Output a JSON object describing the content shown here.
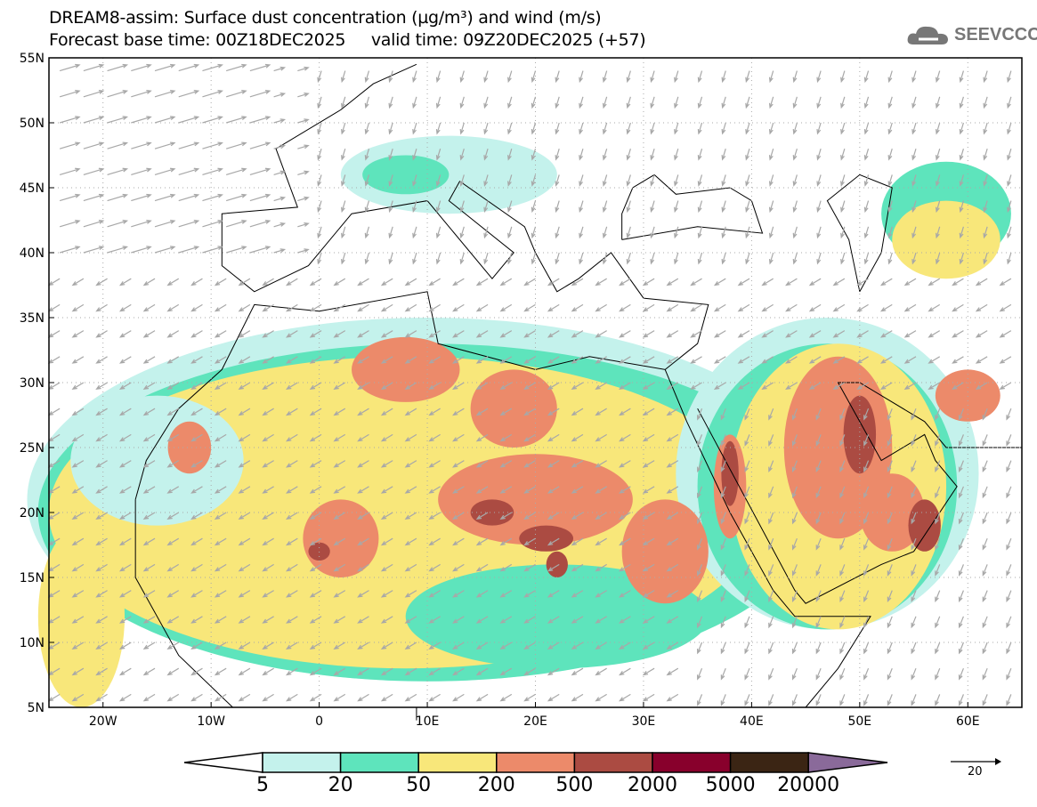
{
  "header": {
    "title_line1": "DREAM8-assim: Surface dust concentration (µg/m³) and wind (m/s)",
    "title_line2": "Forecast base time: 00Z18DEC2025     valid time: 09Z20DEC2025 (+57)",
    "logo_text": "SEEVCCC"
  },
  "map": {
    "lon_range": [
      -25,
      65
    ],
    "lat_range": [
      5,
      55
    ],
    "x_ticks": [
      {
        "lon": -20,
        "label": "20W"
      },
      {
        "lon": -10,
        "label": "10W"
      },
      {
        "lon": 0,
        "label": "0"
      },
      {
        "lon": 10,
        "label": "10E"
      },
      {
        "lon": 20,
        "label": "20E"
      },
      {
        "lon": 30,
        "label": "30E"
      },
      {
        "lon": 40,
        "label": "40E"
      },
      {
        "lon": 50,
        "label": "50E"
      },
      {
        "lon": 60,
        "label": "60E"
      }
    ],
    "y_ticks": [
      {
        "lat": 55,
        "label": "55N"
      },
      {
        "lat": 50,
        "label": "50N"
      },
      {
        "lat": 45,
        "label": "45N"
      },
      {
        "lat": 40,
        "label": "40N"
      },
      {
        "lat": 35,
        "label": "35N"
      },
      {
        "lat": 30,
        "label": "30N"
      },
      {
        "lat": 25,
        "label": "25N"
      },
      {
        "lat": 20,
        "label": "20N"
      },
      {
        "lat": 15,
        "label": "15N"
      },
      {
        "lat": 10,
        "label": "10N"
      },
      {
        "lat": 5,
        "label": "5N"
      }
    ]
  },
  "colorbar": {
    "levels": [
      "5",
      "20",
      "50",
      "200",
      "500",
      "2000",
      "5000",
      "20000"
    ],
    "colors": [
      "#c4f2ec",
      "#5ee4bc",
      "#f8e77a",
      "#ec8a6a",
      "#ab4b42",
      "#88002c",
      "#3b2514",
      "#8a6a9a"
    ]
  },
  "wind_reference": {
    "label": "20"
  }
}
